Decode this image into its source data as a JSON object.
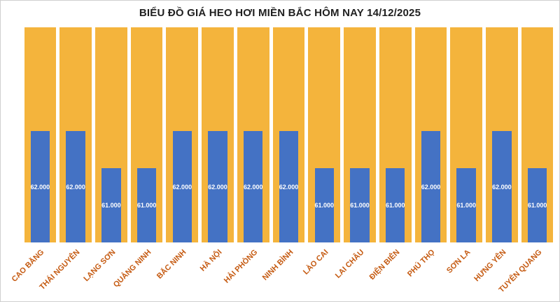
{
  "chart_data": {
    "type": "bar",
    "title": "BIỂU ĐỒ GIÁ HEO HƠI MIỀN BẮC HÔM NAY 14/12/2025",
    "categories": [
      "CAO BẰNG",
      "THÁI NGUYÊN",
      "LẠNG SƠN",
      "QUẢNG NINH",
      "BẮC NINH",
      "HÀ NỘI",
      "HẢI PHÒNG",
      "NINH BÌNH",
      "LÀO CAI",
      "LAI CHÂU",
      "ĐIỆN BIÊN",
      "PHÚ THỌ",
      "SƠN LA",
      "HƯNG YÊN",
      "TUYÊN QUANG"
    ],
    "values": [
      62000,
      62000,
      61000,
      61000,
      62000,
      62000,
      62000,
      62000,
      61000,
      61000,
      61000,
      62000,
      61000,
      62000,
      61000
    ],
    "value_labels": [
      "62.000",
      "62.000",
      "61.000",
      "61.000",
      "62.000",
      "62.000",
      "62.000",
      "62.000",
      "61.000",
      "61.000",
      "61.000",
      "62.000",
      "61.000",
      "62.000",
      "61.000"
    ],
    "xlabel": "",
    "ylabel": "",
    "ylim": [
      59000,
      64800
    ],
    "grid": false,
    "legend": "none",
    "colors": {
      "bar": "#4472C4",
      "background_bar": "#F4B43C",
      "value_label_text": "#FFFFFF",
      "category_label_text": "#C55A11",
      "title_text": "#1F1F1F"
    }
  }
}
